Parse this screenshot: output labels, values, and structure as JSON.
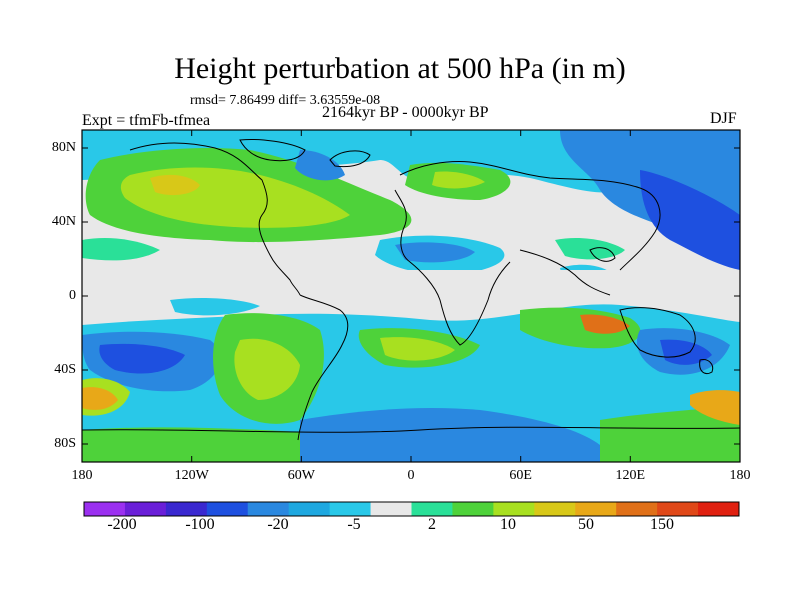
{
  "figure": {
    "title": "Height perturbation at 500 hPa (in m)",
    "stats": "rmsd= 7.86499 diff= 3.63559e-08",
    "experiment": "Expt = tfmFb-tfmea",
    "period": "2164kyr BP - 0000kyr BP",
    "season": "DJF"
  },
  "axes": {
    "lat_labels": [
      "80N",
      "40N",
      "0",
      "40S",
      "80S"
    ],
    "lon_labels": [
      "180",
      "120W",
      "60W",
      "0",
      "60E",
      "120E",
      "180"
    ]
  },
  "colorbar": {
    "labels": [
      "-200",
      "-100",
      "-20",
      "-5",
      "2",
      "10",
      "50",
      "150"
    ],
    "colors": [
      "#9b30f0",
      "#6a1fd8",
      "#3a28d0",
      "#1e50e0",
      "#2a88e0",
      "#1ea8e0",
      "#29c8e8",
      "#e8e8e8",
      "#2ae098",
      "#4ed23a",
      "#a8e020",
      "#d8c818",
      "#e8a818",
      "#e07018",
      "#e04818",
      "#e02010"
    ]
  },
  "legend_colors": {
    "ocean_neutral": "#e8e8e8",
    "coast": "#000000"
  }
}
